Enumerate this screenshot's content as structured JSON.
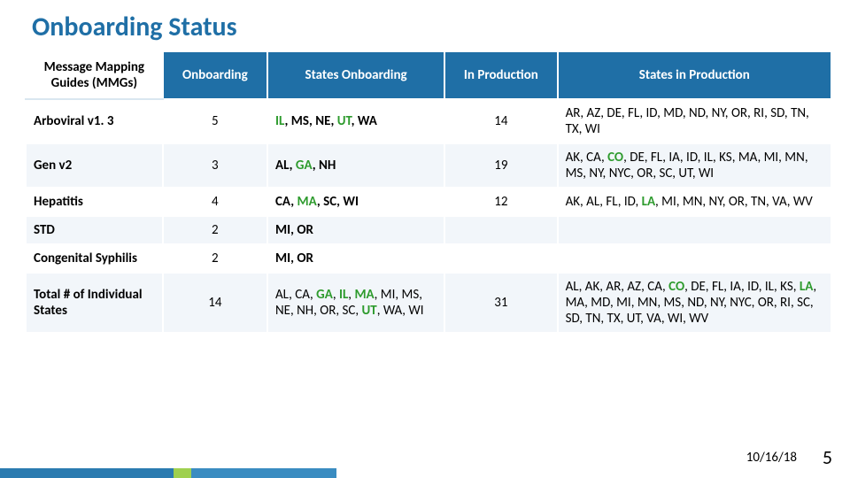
{
  "title": "Onboarding Status",
  "columns": {
    "mmg": "Message Mapping Guides (MMGs)",
    "onboarding": "Onboarding",
    "states_onboarding": "States Onboarding",
    "in_production": "In Production",
    "states_in_production": "States in Production"
  },
  "rows": {
    "arboviral": {
      "mmg": "Arboviral v1. 3",
      "onboarding": "5",
      "states_onboarding_html": "<span class='hl'>IL</span>, MS, NE, <span class='hl'>UT</span>, WA",
      "in_production": "14",
      "states_prod_html": "AR, AZ, DE, FL, ID, MD, ND, NY, OR, RI, SD, TN, TX, WI"
    },
    "genv2": {
      "mmg": "Gen v2",
      "onboarding": "3",
      "states_onboarding_html": "AL, <span class='hl'>GA</span>, NH",
      "in_production": "19",
      "states_prod_html": "AK, CA, <span class='hl'>CO</span>, DE, FL, IA, ID, IL, KS, MA, MI, MN, MS, NY, NYC, OR, SC, UT, WI"
    },
    "hepatitis": {
      "mmg": "Hepatitis",
      "onboarding": "4",
      "states_onboarding_html": "CA, <span class='hl'>MA</span>, SC, WI",
      "in_production": "12",
      "states_prod_html": "AK, AL, FL, ID, <span class='hl'>LA</span>, MI, MN, NY, OR, TN, VA, WV"
    },
    "std": {
      "mmg": "STD",
      "onboarding": "2",
      "states_onboarding_html": "MI, OR",
      "in_production": "",
      "states_prod_html": ""
    },
    "congenital": {
      "mmg": "Congenital Syphilis",
      "onboarding": "2",
      "states_onboarding_html": "MI, OR",
      "in_production": "",
      "states_prod_html": ""
    },
    "total": {
      "mmg": "Total # of Individual States",
      "onboarding": "14",
      "states_onboarding_html": "AL, CA, <span class='hl'>GA</span>, <span class='hl'>IL</span>, <span class='hl'>MA</span>, MI, MS, NE, NH, OR, SC, <span class='hl'>UT</span>,  WA, WI",
      "in_production": "31",
      "states_prod_html": "AL, AK, AR, AZ, CA, <span class='hl'>CO</span>, DE, FL, IA, ID, IL, KS, <span class='hl'>LA</span>, MA, MD, MI, MN, MS, ND, NY, NYC, OR, RI, SC, SD, TN, TX, UT, VA, WI, WV"
    }
  },
  "date": "10/16/18",
  "pagenum": "5",
  "col_widths": [
    "17%",
    "13%",
    "22%",
    "14%",
    "34%"
  ]
}
